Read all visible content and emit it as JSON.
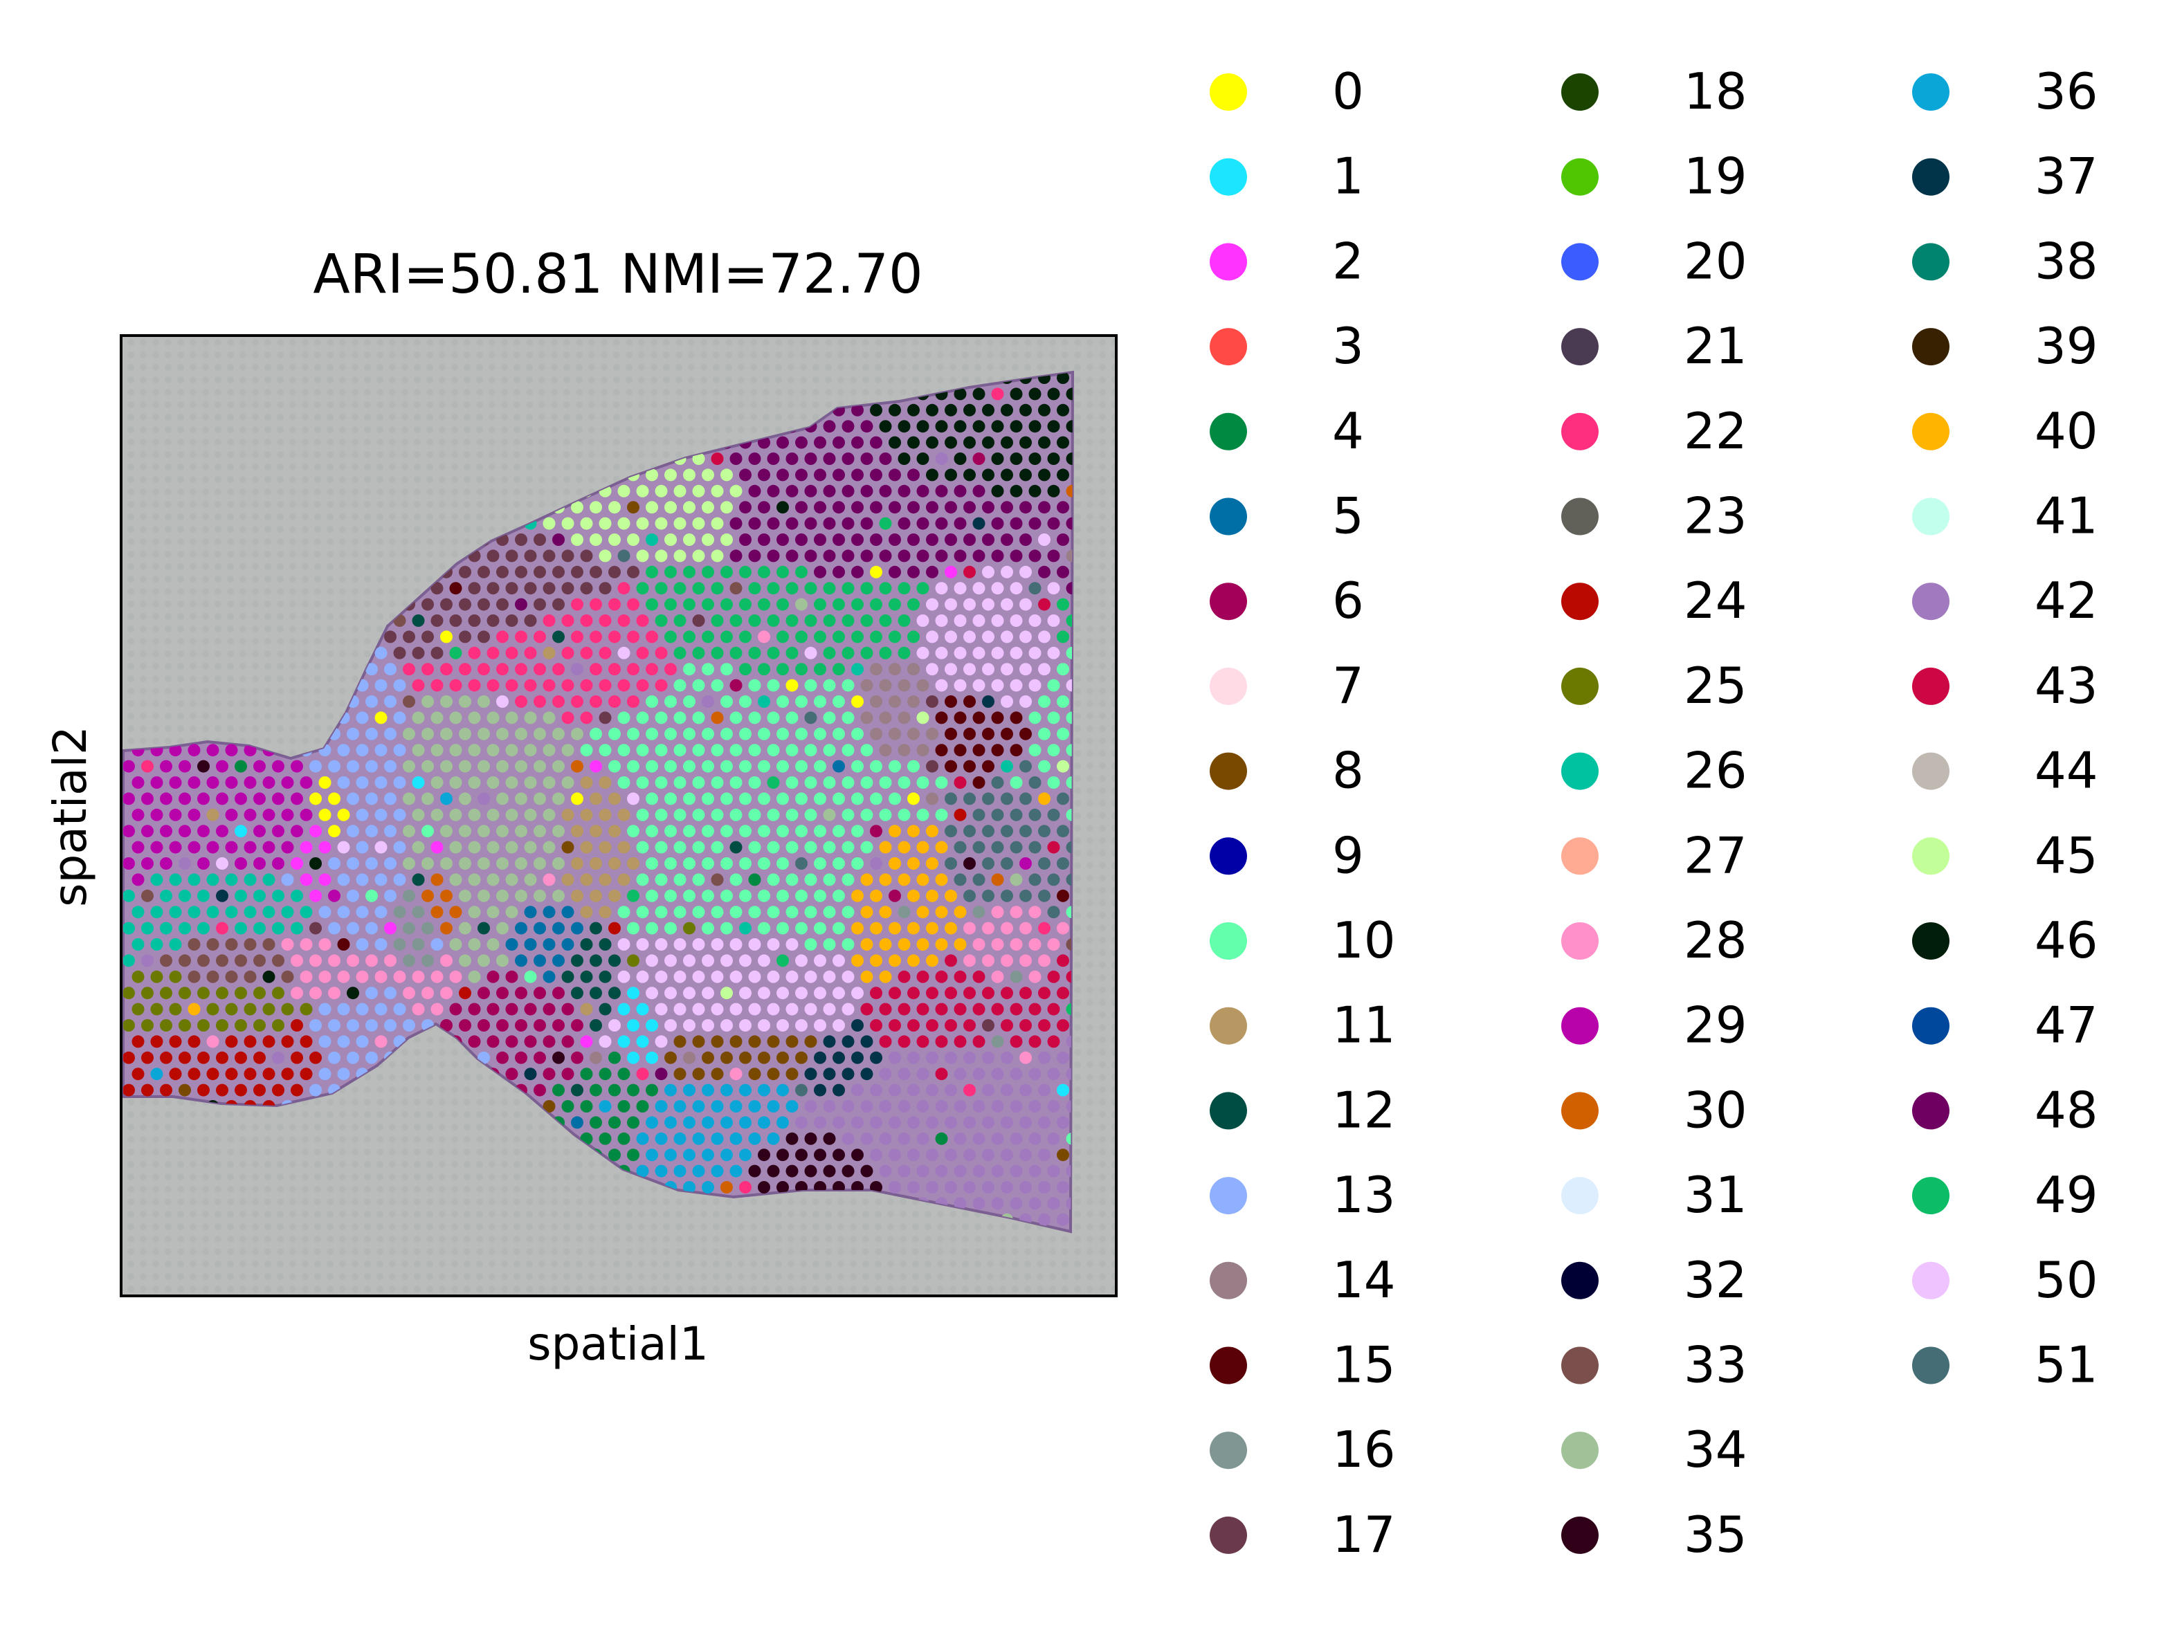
{
  "chart_data": {
    "type": "scatter",
    "title": "ARI=50.81 NMI=72.70",
    "xlabel": "spatial1",
    "ylabel": "spatial2",
    "grid": false,
    "xticks": [],
    "yticks": [],
    "legend": {
      "placement": "right",
      "columns": 3,
      "entries": [
        {
          "label": "0",
          "color": "#ffff00"
        },
        {
          "label": "1",
          "color": "#1ce6ff"
        },
        {
          "label": "2",
          "color": "#ff34ff"
        },
        {
          "label": "3",
          "color": "#ff4a46"
        },
        {
          "label": "4",
          "color": "#008941"
        },
        {
          "label": "5",
          "color": "#006fa6"
        },
        {
          "label": "6",
          "color": "#a30059"
        },
        {
          "label": "7",
          "color": "#ffdbe5"
        },
        {
          "label": "8",
          "color": "#7a4900"
        },
        {
          "label": "9",
          "color": "#0000a6"
        },
        {
          "label": "10",
          "color": "#63ffac"
        },
        {
          "label": "11",
          "color": "#b79762"
        },
        {
          "label": "12",
          "color": "#004d43"
        },
        {
          "label": "13",
          "color": "#8fb0ff"
        },
        {
          "label": "14",
          "color": "#997d87"
        },
        {
          "label": "15",
          "color": "#5a0007"
        },
        {
          "label": "16",
          "color": "#809693"
        },
        {
          "label": "17",
          "color": "#6a3a4c"
        },
        {
          "label": "18",
          "color": "#1b4400"
        },
        {
          "label": "19",
          "color": "#4fc601"
        },
        {
          "label": "20",
          "color": "#3b5dff"
        },
        {
          "label": "21",
          "color": "#4a3b53"
        },
        {
          "label": "22",
          "color": "#ff2f80"
        },
        {
          "label": "23",
          "color": "#61615a"
        },
        {
          "label": "24",
          "color": "#ba0900"
        },
        {
          "label": "25",
          "color": "#6b7900"
        },
        {
          "label": "26",
          "color": "#00c2a0"
        },
        {
          "label": "27",
          "color": "#ffaa92"
        },
        {
          "label": "28",
          "color": "#ff90c9"
        },
        {
          "label": "29",
          "color": "#b903aa"
        },
        {
          "label": "30",
          "color": "#d16100"
        },
        {
          "label": "31",
          "color": "#ddefff"
        },
        {
          "label": "32",
          "color": "#000035"
        },
        {
          "label": "33",
          "color": "#7b4f4b"
        },
        {
          "label": "34",
          "color": "#a1c299"
        },
        {
          "label": "35",
          "color": "#300018"
        },
        {
          "label": "36",
          "color": "#0aa6d8"
        },
        {
          "label": "37",
          "color": "#013349"
        },
        {
          "label": "38",
          "color": "#00846f"
        },
        {
          "label": "39",
          "color": "#372101"
        },
        {
          "label": "40",
          "color": "#ffb500"
        },
        {
          "label": "41",
          "color": "#c2ffed"
        },
        {
          "label": "42",
          "color": "#a079bf"
        },
        {
          "label": "43",
          "color": "#cc0744"
        },
        {
          "label": "44",
          "color": "#c0b9b2"
        },
        {
          "label": "45",
          "color": "#c2ff99"
        },
        {
          "label": "46",
          "color": "#001e09"
        },
        {
          "label": "47",
          "color": "#00489c"
        },
        {
          "label": "48",
          "color": "#6f0062"
        },
        {
          "label": "49",
          "color": "#0cbd66"
        },
        {
          "label": "50",
          "color": "#eec3ff"
        },
        {
          "label": "51",
          "color": "#456d75"
        }
      ]
    },
    "regions": [
      {
        "cluster": "13",
        "x": 0.25,
        "y": 0.58,
        "rx": 0.04,
        "ry": 0.23
      },
      {
        "cluster": "17",
        "x": 0.37,
        "y": 0.26,
        "rx": 0.11,
        "ry": 0.06
      },
      {
        "cluster": "45",
        "x": 0.57,
        "y": 0.15,
        "rx": 0.09,
        "ry": 0.05
      },
      {
        "cluster": "48",
        "x": 0.75,
        "y": 0.15,
        "rx": 0.12,
        "ry": 0.06
      },
      {
        "cluster": "46",
        "x": 0.89,
        "y": 0.09,
        "rx": 0.08,
        "ry": 0.035
      },
      {
        "cluster": "22",
        "x": 0.48,
        "y": 0.33,
        "rx": 0.12,
        "ry": 0.06
      },
      {
        "cluster": "49",
        "x": 0.67,
        "y": 0.3,
        "rx": 0.13,
        "ry": 0.05
      },
      {
        "cluster": "50",
        "x": 0.89,
        "y": 0.32,
        "rx": 0.04,
        "ry": 0.06
      },
      {
        "cluster": "15",
        "x": 0.89,
        "y": 0.42,
        "rx": 0.03,
        "ry": 0.05
      },
      {
        "cluster": "34",
        "x": 0.4,
        "y": 0.52,
        "rx": 0.09,
        "ry": 0.12
      },
      {
        "cluster": "11",
        "x": 0.5,
        "y": 0.55,
        "rx": 0.05,
        "ry": 0.09
      },
      {
        "cluster": "10",
        "x": 0.65,
        "y": 0.52,
        "rx": 0.15,
        "ry": 0.19
      },
      {
        "cluster": "50",
        "x": 0.63,
        "y": 0.71,
        "rx": 0.12,
        "ry": 0.08
      },
      {
        "cluster": "14",
        "x": 0.81,
        "y": 0.4,
        "rx": 0.04,
        "ry": 0.05
      },
      {
        "cluster": "40",
        "x": 0.82,
        "y": 0.62,
        "rx": 0.06,
        "ry": 0.08
      },
      {
        "cluster": "51",
        "x": 0.91,
        "y": 0.56,
        "rx": 0.04,
        "ry": 0.06
      },
      {
        "cluster": "28",
        "x": 0.92,
        "y": 0.66,
        "rx": 0.03,
        "ry": 0.05
      },
      {
        "cluster": "43",
        "x": 0.86,
        "y": 0.74,
        "rx": 0.07,
        "ry": 0.05
      },
      {
        "cluster": "42",
        "x": 0.83,
        "y": 0.86,
        "rx": 0.1,
        "ry": 0.07
      },
      {
        "cluster": "35",
        "x": 0.73,
        "y": 0.92,
        "rx": 0.07,
        "ry": 0.04
      },
      {
        "cluster": "36",
        "x": 0.64,
        "y": 0.88,
        "rx": 0.06,
        "ry": 0.05
      },
      {
        "cluster": "8",
        "x": 0.65,
        "y": 0.79,
        "rx": 0.08,
        "ry": 0.03
      },
      {
        "cluster": "37",
        "x": 0.76,
        "y": 0.81,
        "rx": 0.04,
        "ry": 0.04
      },
      {
        "cluster": "6",
        "x": 0.43,
        "y": 0.77,
        "rx": 0.05,
        "ry": 0.06
      },
      {
        "cluster": "5",
        "x": 0.45,
        "y": 0.66,
        "rx": 0.04,
        "ry": 0.04
      },
      {
        "cluster": "12",
        "x": 0.5,
        "y": 0.7,
        "rx": 0.03,
        "ry": 0.05
      },
      {
        "cluster": "1",
        "x": 0.54,
        "y": 0.75,
        "rx": 0.02,
        "ry": 0.06
      },
      {
        "cluster": "4",
        "x": 0.5,
        "y": 0.85,
        "rx": 0.04,
        "ry": 0.04
      },
      {
        "cluster": "29",
        "x": 0.12,
        "y": 0.55,
        "rx": 0.08,
        "ry": 0.07
      },
      {
        "cluster": "26",
        "x": 0.13,
        "y": 0.6,
        "rx": 0.08,
        "ry": 0.05
      },
      {
        "cluster": "2",
        "x": 0.2,
        "y": 0.57,
        "rx": 0.03,
        "ry": 0.05
      },
      {
        "cluster": "0",
        "x": 0.23,
        "y": 0.52,
        "rx": 0.03,
        "ry": 0.05
      },
      {
        "cluster": "28",
        "x": 0.24,
        "y": 0.69,
        "rx": 0.07,
        "ry": 0.04
      },
      {
        "cluster": "33",
        "x": 0.13,
        "y": 0.69,
        "rx": 0.05,
        "ry": 0.03
      },
      {
        "cluster": "25",
        "x": 0.11,
        "y": 0.74,
        "rx": 0.06,
        "ry": 0.03
      },
      {
        "cluster": "24",
        "x": 0.12,
        "y": 0.79,
        "rx": 0.07,
        "ry": 0.03
      },
      {
        "cluster": "16",
        "x": 0.3,
        "y": 0.66,
        "rx": 0.03,
        "ry": 0.04
      },
      {
        "cluster": "30",
        "x": 0.33,
        "y": 0.62,
        "rx": 0.02,
        "ry": 0.04
      }
    ]
  }
}
